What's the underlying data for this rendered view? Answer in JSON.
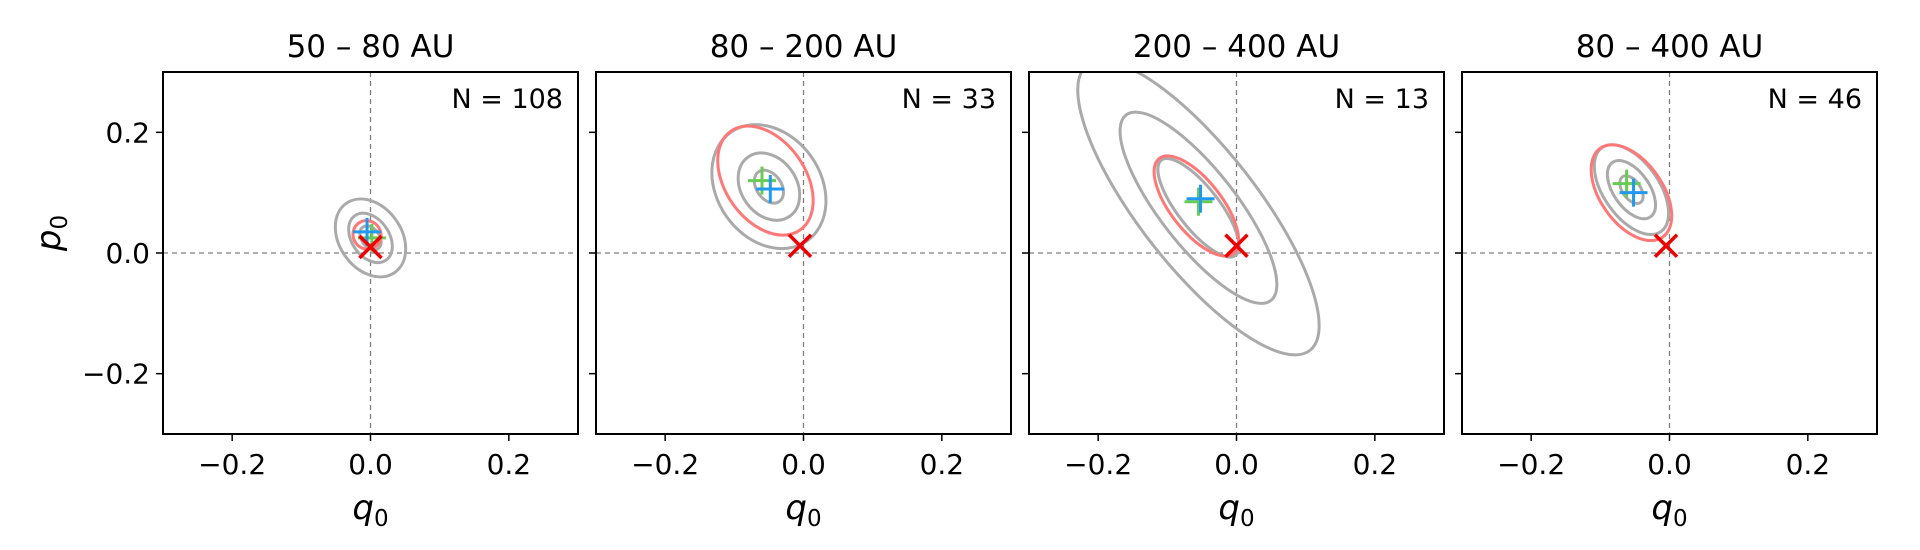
{
  "chart_data": [
    {
      "type": "scatter",
      "title": "50 – 80 AU",
      "annotation": "N = 108",
      "xlabel": "q",
      "xlabel_sub": "0",
      "ylabel": "p",
      "ylabel_sub": "0",
      "xlim": [
        -0.3,
        0.3
      ],
      "ylim": [
        -0.3,
        0.3
      ],
      "xticks": [
        -0.2,
        0.0,
        0.2
      ],
      "yticks": [
        -0.2,
        0.0,
        0.2
      ],
      "xticklabels": [
        "−0.2",
        "0.0",
        "0.2"
      ],
      "yticklabels": [
        "−0.2",
        "0.0",
        "0.2"
      ],
      "show_yticklabels": true,
      "reference_lines": {
        "x": 0.0,
        "y": 0.0
      },
      "contours": [
        {
          "color": "#aaaaaa",
          "center": [
            0.0,
            0.025
          ],
          "semi_axes": [
            0.045,
            0.07
          ],
          "angle_deg": -35
        },
        {
          "color": "#aaaaaa",
          "center": [
            0.0,
            0.025
          ],
          "semi_axes": [
            0.027,
            0.045
          ],
          "angle_deg": -35
        },
        {
          "color": "#aaaaaa",
          "center": [
            0.0,
            0.025
          ],
          "semi_axes": [
            0.013,
            0.022
          ],
          "angle_deg": -35
        },
        {
          "color": "#ff7777",
          "center": [
            -0.005,
            0.03
          ],
          "semi_axes": [
            0.02,
            0.024
          ],
          "angle_deg": -35
        }
      ],
      "markers": [
        {
          "shape": "plus",
          "color": "#66cc55",
          "x": 0.002,
          "y": 0.025
        },
        {
          "shape": "plus",
          "color": "#2299ee",
          "x": -0.005,
          "y": 0.035
        },
        {
          "shape": "cross",
          "color": "#ee0000",
          "x": 0.0,
          "y": 0.01
        }
      ]
    },
    {
      "type": "scatter",
      "title": "80 – 200 AU",
      "annotation": "N = 33",
      "xlabel": "q",
      "xlabel_sub": "0",
      "ylabel": "",
      "ylabel_sub": "",
      "xlim": [
        -0.3,
        0.3
      ],
      "ylim": [
        -0.3,
        0.3
      ],
      "xticks": [
        -0.2,
        0.0,
        0.2
      ],
      "yticks": [
        -0.2,
        0.0,
        0.2
      ],
      "xticklabels": [
        "−0.2",
        "0.0",
        "0.2"
      ],
      "yticklabels": [],
      "show_yticklabels": false,
      "reference_lines": {
        "x": 0.0,
        "y": 0.0
      },
      "contours": [
        {
          "color": "#aaaaaa",
          "center": [
            -0.05,
            0.11
          ],
          "semi_axes": [
            0.075,
            0.11
          ],
          "angle_deg": -35
        },
        {
          "color": "#aaaaaa",
          "center": [
            -0.05,
            0.11
          ],
          "semi_axes": [
            0.04,
            0.06
          ],
          "angle_deg": -35
        },
        {
          "color": "#aaaaaa",
          "center": [
            -0.05,
            0.11
          ],
          "semi_axes": [
            0.018,
            0.03
          ],
          "angle_deg": -35
        },
        {
          "color": "#ff7777",
          "center": [
            -0.055,
            0.12
          ],
          "semi_axes": [
            0.058,
            0.1
          ],
          "angle_deg": -35
        }
      ],
      "markers": [
        {
          "shape": "plus",
          "color": "#66cc55",
          "x": -0.06,
          "y": 0.12
        },
        {
          "shape": "plus",
          "color": "#2299ee",
          "x": -0.048,
          "y": 0.106
        },
        {
          "shape": "cross",
          "color": "#ee0000",
          "x": -0.005,
          "y": 0.012
        }
      ]
    },
    {
      "type": "scatter",
      "title": "200 – 400 AU",
      "annotation": "N = 13",
      "xlabel": "q",
      "xlabel_sub": "0",
      "ylabel": "",
      "ylabel_sub": "",
      "xlim": [
        -0.3,
        0.3
      ],
      "ylim": [
        -0.3,
        0.3
      ],
      "xticks": [
        -0.2,
        0.0,
        0.2
      ],
      "yticks": [
        -0.2,
        0.0,
        0.2
      ],
      "xticklabels": [
        "−0.2",
        "0.0",
        "0.2"
      ],
      "yticklabels": [],
      "show_yticklabels": false,
      "reference_lines": {
        "x": 0.0,
        "y": 0.0
      },
      "contours": [
        {
          "color": "#aaaaaa",
          "center": [
            -0.055,
            0.075
          ],
          "semi_axes": [
            0.085,
            0.3
          ],
          "angle_deg": -38
        },
        {
          "color": "#aaaaaa",
          "center": [
            -0.055,
            0.075
          ],
          "semi_axes": [
            0.055,
            0.195
          ],
          "angle_deg": -38
        },
        {
          "color": "#aaaaaa",
          "center": [
            -0.055,
            0.075
          ],
          "semi_axes": [
            0.03,
            0.1
          ],
          "angle_deg": -38
        },
        {
          "color": "#ff7777",
          "center": [
            -0.058,
            0.078
          ],
          "semi_axes": [
            0.037,
            0.1
          ],
          "angle_deg": -38
        }
      ],
      "markers": [
        {
          "shape": "plus",
          "color": "#66cc55",
          "x": -0.055,
          "y": 0.085
        },
        {
          "shape": "plus",
          "color": "#2299ee",
          "x": -0.052,
          "y": 0.09
        },
        {
          "shape": "cross",
          "color": "#ee0000",
          "x": 0.0,
          "y": 0.012
        }
      ]
    },
    {
      "type": "scatter",
      "title": "80 – 400 AU",
      "annotation": "N = 46",
      "xlabel": "q",
      "xlabel_sub": "0",
      "ylabel": "",
      "ylabel_sub": "",
      "xlim": [
        -0.3,
        0.3
      ],
      "ylim": [
        -0.3,
        0.3
      ],
      "xticks": [
        -0.2,
        0.0,
        0.2
      ],
      "yticks": [
        -0.2,
        0.0,
        0.2
      ],
      "xticklabels": [
        "−0.2",
        "0.0",
        "0.2"
      ],
      "yticklabels": [],
      "show_yticklabels": false,
      "reference_lines": {
        "x": 0.0,
        "y": 0.0
      },
      "contours": [
        {
          "color": "#aaaaaa",
          "center": [
            -0.055,
            0.105
          ],
          "semi_axes": [
            0.04,
            0.085
          ],
          "angle_deg": -35
        },
        {
          "color": "#aaaaaa",
          "center": [
            -0.055,
            0.105
          ],
          "semi_axes": [
            0.026,
            0.055
          ],
          "angle_deg": -35
        },
        {
          "color": "#aaaaaa",
          "center": [
            -0.055,
            0.105
          ],
          "semi_axes": [
            0.013,
            0.026
          ],
          "angle_deg": -35
        },
        {
          "color": "#ff7777",
          "center": [
            -0.055,
            0.1
          ],
          "semi_axes": [
            0.045,
            0.09
          ],
          "angle_deg": -35
        }
      ],
      "markers": [
        {
          "shape": "plus",
          "color": "#66cc55",
          "x": -0.062,
          "y": 0.115
        },
        {
          "shape": "plus",
          "color": "#2299ee",
          "x": -0.052,
          "y": 0.1
        },
        {
          "shape": "cross",
          "color": "#ee0000",
          "x": -0.005,
          "y": 0.012
        }
      ]
    }
  ]
}
